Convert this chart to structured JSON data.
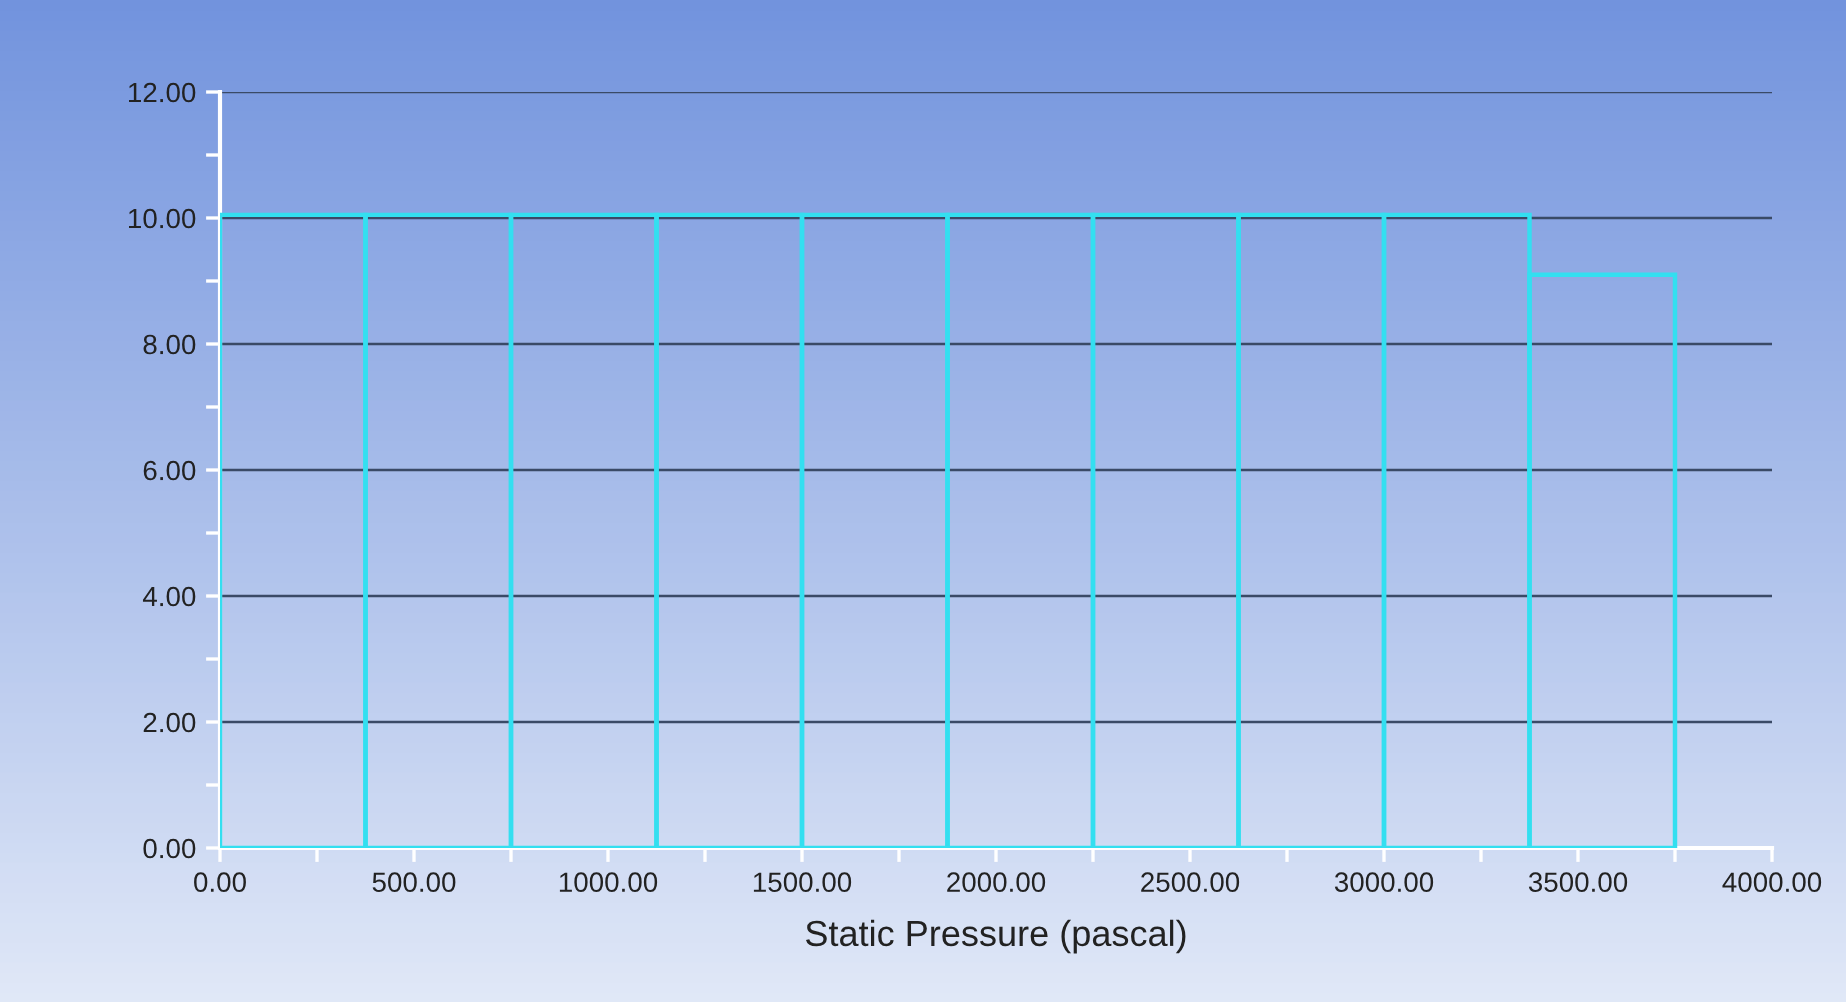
{
  "chart_data": {
    "type": "histogram",
    "xlabel": "Static Pressure (pascal)",
    "bins": [
      0,
      375,
      750,
      1125,
      1500,
      1875,
      2250,
      2625,
      3000,
      3375,
      3750
    ],
    "values": [
      10.05,
      10.05,
      10.05,
      10.05,
      10.05,
      10.05,
      10.05,
      10.05,
      10.05,
      9.1
    ],
    "color": "#33dff0",
    "xlim": [
      0,
      4000
    ],
    "xticks": [
      {
        "value": 0,
        "label": "0.00"
      },
      {
        "value": 250,
        "label": null
      },
      {
        "value": 500,
        "label": "500.00"
      },
      {
        "value": 750,
        "label": null
      },
      {
        "value": 1000,
        "label": "1000.00"
      },
      {
        "value": 1250,
        "label": null
      },
      {
        "value": 1500,
        "label": "1500.00"
      },
      {
        "value": 1750,
        "label": null
      },
      {
        "value": 2000,
        "label": "2000.00"
      },
      {
        "value": 2250,
        "label": null
      },
      {
        "value": 2500,
        "label": "2500.00"
      },
      {
        "value": 2750,
        "label": null
      },
      {
        "value": 3000,
        "label": "3000.00"
      },
      {
        "value": 3250,
        "label": null
      },
      {
        "value": 3500,
        "label": "3500.00"
      },
      {
        "value": 3750,
        "label": null
      },
      {
        "value": 4000,
        "label": "4000.00"
      }
    ],
    "ylim": [
      0,
      12
    ],
    "yticks": [
      {
        "value": 0,
        "label": "0.00"
      },
      {
        "value": 1,
        "label": null
      },
      {
        "value": 2,
        "label": "2.00"
      },
      {
        "value": 3,
        "label": null
      },
      {
        "value": 4,
        "label": "4.00"
      },
      {
        "value": 5,
        "label": null
      },
      {
        "value": 6,
        "label": "6.00"
      },
      {
        "value": 7,
        "label": null
      },
      {
        "value": 8,
        "label": "8.00"
      },
      {
        "value": 9,
        "label": null
      },
      {
        "value": 10,
        "label": "10.00"
      },
      {
        "value": 11,
        "label": null
      },
      {
        "value": 12,
        "label": "12.00"
      }
    ],
    "grid": "y"
  }
}
